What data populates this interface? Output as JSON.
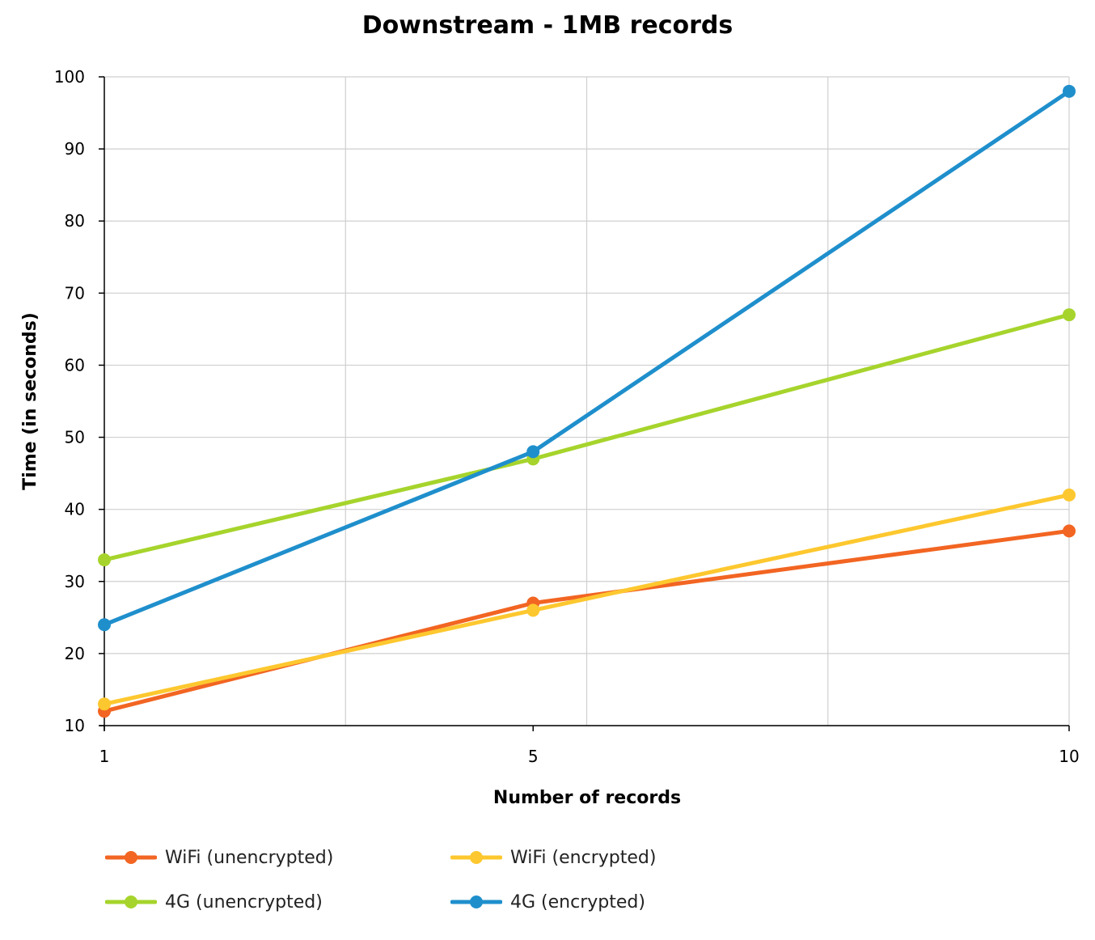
{
  "chart_data": {
    "type": "line",
    "title": "Downstream - 1MB records",
    "xlabel": "Number of records",
    "ylabel": "Time (in seconds)",
    "x": [
      1,
      5,
      10
    ],
    "x_ticks": [
      "1",
      "5",
      "10"
    ],
    "xlim": [
      1,
      10
    ],
    "ylim": [
      10,
      100
    ],
    "y_ticks": [
      10,
      20,
      30,
      40,
      50,
      60,
      70,
      80,
      90,
      100
    ],
    "grid": true,
    "legend_position": "bottom",
    "series": [
      {
        "name": "WiFi (unencrypted)",
        "color": "#f26522",
        "values": [
          12,
          27,
          37
        ]
      },
      {
        "name": "WiFi (encrypted)",
        "color": "#fdc82f",
        "values": [
          13,
          26,
          42
        ]
      },
      {
        "name": "4G (unencrypted)",
        "color": "#a6d42c",
        "values": [
          33,
          47,
          67
        ]
      },
      {
        "name": "4G (encrypted)",
        "color": "#1f8fcc",
        "values": [
          24,
          48,
          98
        ]
      }
    ]
  }
}
